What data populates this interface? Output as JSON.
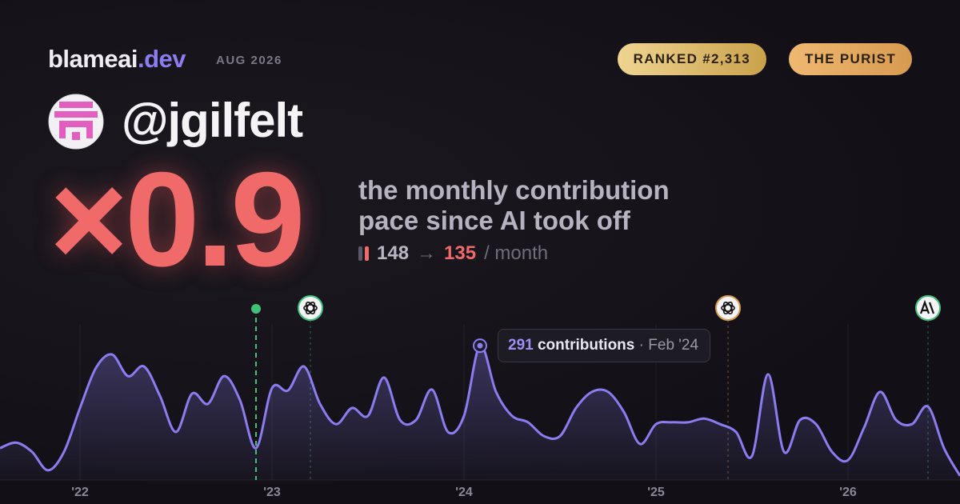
{
  "header": {
    "brand": "blameai",
    "brand_suffix": ".dev",
    "date": "AUG 2026",
    "badges": [
      "RANKED #2,313",
      "THE PURIST"
    ]
  },
  "profile": {
    "handle": "@jgilfelt"
  },
  "summary": {
    "multiplier": "×0.9",
    "description": [
      "the monthly contribution",
      "pace since AI took off"
    ],
    "before": 148,
    "arrow": "→",
    "after": 135,
    "unit": "/ month"
  },
  "tooltip": {
    "value": 291,
    "label": "contributions",
    "separator": "·",
    "date": "Feb '24"
  },
  "chart_data": {
    "type": "line",
    "color": "#8b7cf0",
    "categories": [
      null,
      null,
      null,
      null,
      null,
      "'22",
      null,
      null,
      null,
      null,
      null,
      null,
      null,
      null,
      null,
      null,
      null,
      "'23",
      null,
      null,
      null,
      null,
      null,
      null,
      null,
      null,
      null,
      null,
      null,
      "'24",
      null,
      null,
      null,
      null,
      null,
      null,
      null,
      null,
      null,
      null,
      null,
      "'25",
      null,
      null,
      null,
      null,
      null,
      null,
      null,
      null,
      null,
      null,
      null,
      "'26",
      null,
      null,
      null,
      null,
      null,
      null,
      null
    ],
    "values": [
      69,
      81,
      61,
      21,
      61,
      156,
      243,
      272,
      225,
      246,
      182,
      104,
      187,
      165,
      225,
      173,
      69,
      199,
      194,
      246,
      165,
      121,
      156,
      139,
      222,
      130,
      130,
      196,
      104,
      139,
      291,
      191,
      139,
      125,
      95,
      95,
      156,
      191,
      191,
      147,
      78,
      121,
      125,
      125,
      133,
      121,
      104,
      52,
      229,
      61,
      130,
      121,
      61,
      43,
      113,
      191,
      130,
      121,
      159,
      69,
      9
    ]
  }
}
